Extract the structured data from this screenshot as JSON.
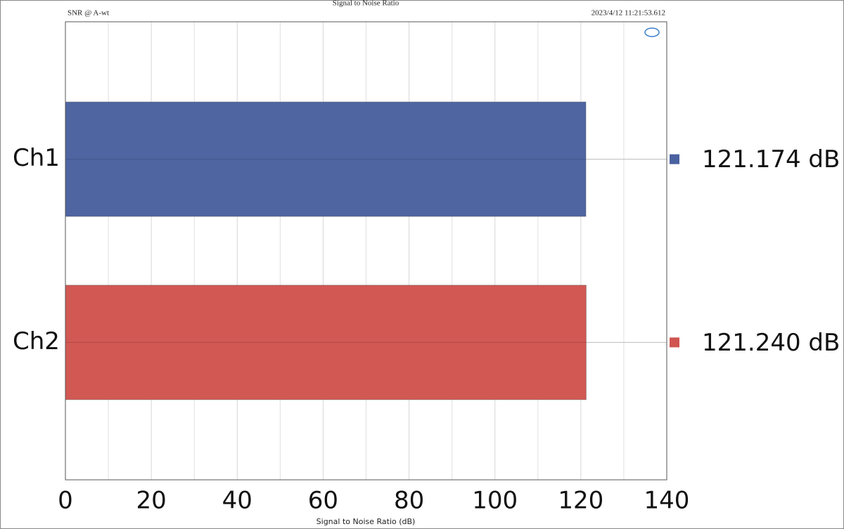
{
  "chart_data": {
    "type": "hbar",
    "title": "Signal to Noise Ratio",
    "subtitle": "SNR @ A-wt",
    "timestamp": "2023/4/12 11:21:53.612",
    "xlabel": "Signal to Noise Ratio (dB)",
    "categories": [
      "Ch1",
      "Ch2"
    ],
    "series": [
      {
        "name": "Ch1",
        "color": "#4a62a0",
        "values": [
          121.174,
          null
        ],
        "value_labels": [
          "121.174 dB",
          null
        ]
      },
      {
        "name": "Ch2",
        "color": "#d05550",
        "values": [
          null,
          121.24
        ],
        "value_labels": [
          null,
          "121.240 dB"
        ]
      }
    ],
    "xlim": [
      0,
      140
    ],
    "xticks": [
      0,
      20,
      40,
      60,
      80,
      100,
      120,
      140
    ],
    "xminorticks": [
      10,
      30,
      50,
      70,
      90,
      110,
      130
    ],
    "grid": true
  }
}
